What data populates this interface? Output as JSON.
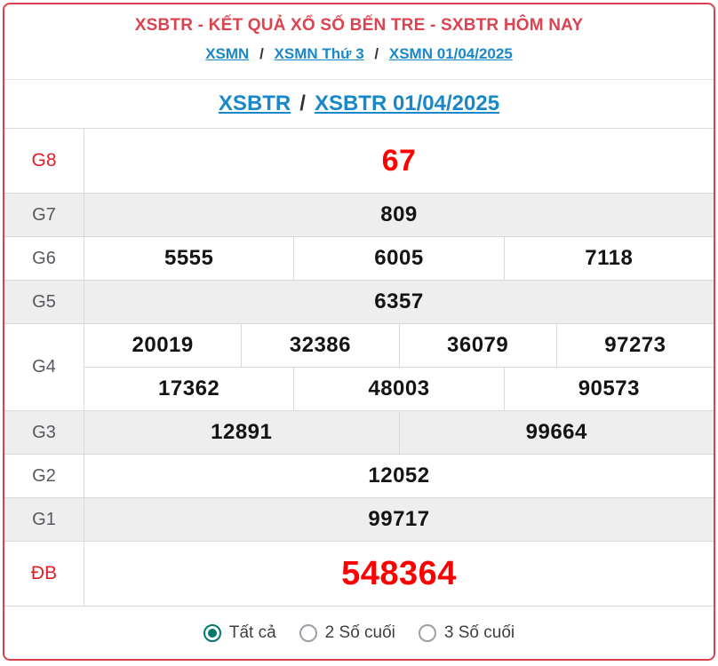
{
  "header": {
    "title": "XSBTR - KẾT QUẢ XỔ SỐ BẾN TRE - SXBTR HÔM NAY"
  },
  "breadcrumb": {
    "separator": "/",
    "items": [
      {
        "label": "XSMN"
      },
      {
        "label": "XSMN Thứ 3"
      },
      {
        "label": "XSMN 01/04/2025"
      }
    ]
  },
  "page_title": {
    "left": "XSBTR",
    "separator": "/",
    "right": "XSBTR 01/04/2025"
  },
  "results_table": {
    "rows": [
      {
        "label": "G8",
        "numbers": [
          "67"
        ],
        "highlight": true
      },
      {
        "label": "G7",
        "numbers": [
          "809"
        ]
      },
      {
        "label": "G6",
        "numbers": [
          "5555",
          "6005",
          "7118"
        ]
      },
      {
        "label": "G5",
        "numbers": [
          "6357"
        ]
      },
      {
        "label": "G4",
        "numbers_line1": [
          "20019",
          "32386",
          "36079",
          "97273"
        ],
        "numbers_line2": [
          "17362",
          "48003",
          "90573"
        ]
      },
      {
        "label": "G3",
        "numbers": [
          "12891",
          "99664"
        ]
      },
      {
        "label": "G2",
        "numbers": [
          "12052"
        ]
      },
      {
        "label": "G1",
        "numbers": [
          "99717"
        ]
      },
      {
        "label": "ĐB",
        "numbers": [
          "548364"
        ],
        "highlight": true
      }
    ]
  },
  "filter": {
    "options": [
      {
        "label": "Tất cả",
        "selected": true
      },
      {
        "label": "2 Số cuối",
        "selected": false
      },
      {
        "label": "3 Số cuối",
        "selected": false
      }
    ]
  },
  "colors": {
    "border_red": "#d8414e",
    "header_red": "#dc4350",
    "number_red": "#fe0000",
    "label_red": "#e41e26",
    "link_blue": "#1a87c9",
    "radio_teal": "#00796b",
    "row_alt_bg": "#eeeeee",
    "grid_line": "#d9d9d9"
  }
}
